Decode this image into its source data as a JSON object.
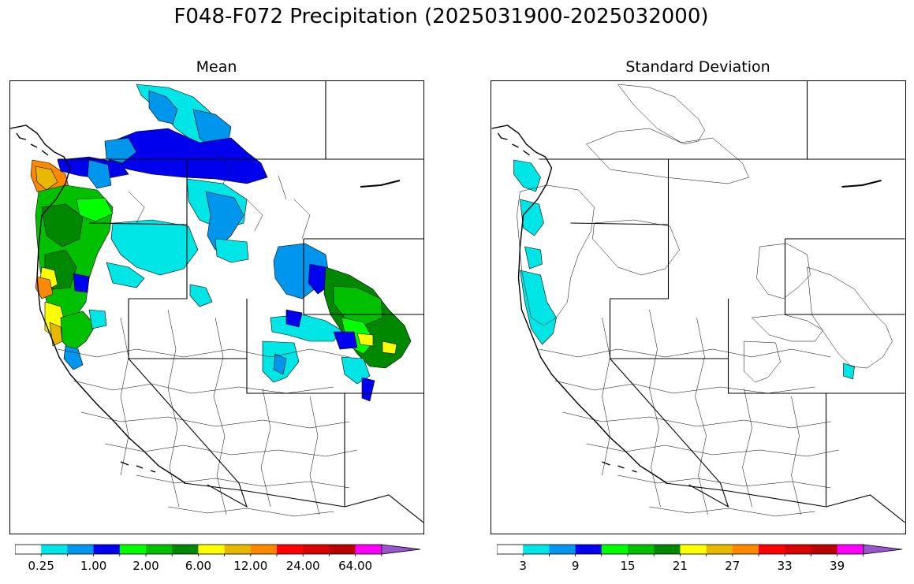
{
  "figure": {
    "title": "F048-F072 Precipitation (2025031900-2025032000)"
  },
  "panels": [
    {
      "title": "Mean",
      "colorbar": {
        "colors": [
          "#ffffff",
          "#00e5e5",
          "#0096ee",
          "#0000ee",
          "#00ff00",
          "#00c000",
          "#008800",
          "#ffff00",
          "#e6b800",
          "#ff8800",
          "#ff0000",
          "#d90000",
          "#b80000",
          "#ff00ff",
          "#9955cc"
        ],
        "tick_labels": [
          "0.25",
          "1.00",
          "2.00",
          "6.00",
          "12.00",
          "24.00",
          "64.00"
        ],
        "extend": "max"
      }
    },
    {
      "title": "Standard Deviation",
      "colorbar": {
        "colors": [
          "#ffffff",
          "#00e5e5",
          "#0096ee",
          "#0000ee",
          "#00ff00",
          "#00c000",
          "#008800",
          "#ffff00",
          "#e6b800",
          "#ff8800",
          "#ff0000",
          "#d90000",
          "#b80000",
          "#ff00ff",
          "#9955cc"
        ],
        "tick_labels": [
          "3",
          "9",
          "15",
          "21",
          "27",
          "33",
          "39"
        ],
        "extend": "max"
      }
    }
  ],
  "legend_palette": {
    "cyan": "#00e5e5",
    "light_blue": "#0096ee",
    "blue": "#0000ee",
    "lime": "#00ff00",
    "green": "#00c000",
    "dark_green": "#008800",
    "yellow": "#ffff00",
    "gold": "#e6b800",
    "orange": "#ff8800"
  }
}
